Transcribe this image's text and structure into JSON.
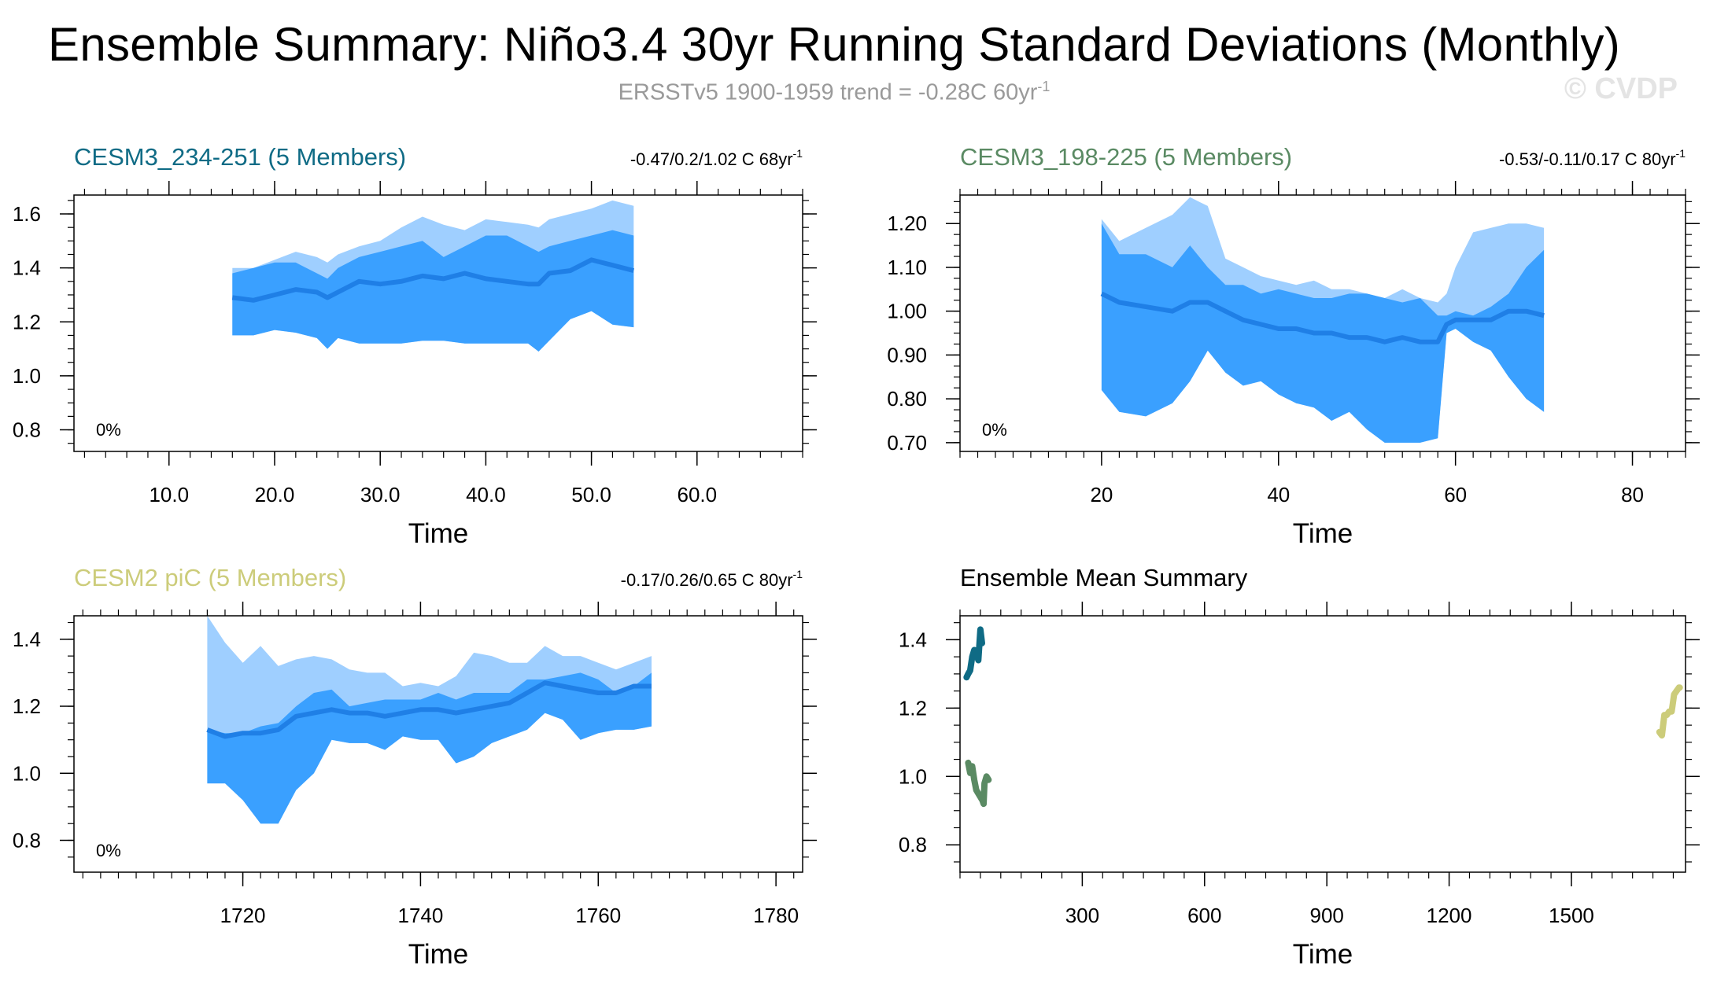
{
  "title": "Ensemble Summary: Niño3.4 30yr Running Standard Deviations (Monthly)",
  "subtitle": {
    "main": "ERSSTv5 1900-1959 trend = -0.28C 60yr",
    "sup": "-1"
  },
  "watermark": "© CVDP",
  "colors": {
    "outer_band": "#9fcfff",
    "inner_band": "#3aa0ff",
    "mean_line": "#1f7fe6",
    "cesm3_234_251": "#0f6b85",
    "cesm3_198_225": "#5a8a63",
    "cesm2_pic": "#cccc7a"
  },
  "chart_data": [
    {
      "type": "area",
      "panel": "top-left",
      "title": "CESM3_234-251 (5 Members)",
      "title_color_key": "cesm3_234_251",
      "trend_text": "-0.47/0.2/1.02 C 68yr",
      "trend_sup": "-1",
      "percent_label": "0%",
      "xlabel": "Time",
      "xlim": [
        1,
        70
      ],
      "ylim": [
        0.72,
        1.67
      ],
      "xticks": [
        10,
        20,
        30,
        40,
        50,
        60
      ],
      "xtick_labels": [
        "10.0",
        "20.0",
        "30.0",
        "40.0",
        "50.0",
        "60.0"
      ],
      "yticks": [
        0.8,
        1.0,
        1.2,
        1.4,
        1.6
      ],
      "ytick_labels": [
        "0.8",
        "1.0",
        "1.2",
        "1.4",
        "1.6"
      ],
      "x": [
        16,
        18,
        20,
        22,
        24,
        25,
        26,
        28,
        30,
        32,
        34,
        36,
        38,
        40,
        42,
        44,
        45,
        46,
        48,
        50,
        52,
        54
      ],
      "min": [
        1.15,
        1.15,
        1.17,
        1.16,
        1.14,
        1.1,
        1.14,
        1.12,
        1.12,
        1.12,
        1.13,
        1.13,
        1.12,
        1.12,
        1.12,
        1.12,
        1.09,
        1.13,
        1.21,
        1.24,
        1.19,
        1.18
      ],
      "p25": [
        1.38,
        1.4,
        1.42,
        1.42,
        1.38,
        1.36,
        1.4,
        1.44,
        1.46,
        1.48,
        1.5,
        1.44,
        1.48,
        1.52,
        1.52,
        1.48,
        1.46,
        1.48,
        1.5,
        1.52,
        1.54,
        1.52
      ],
      "mean": [
        1.29,
        1.28,
        1.3,
        1.32,
        1.31,
        1.29,
        1.31,
        1.35,
        1.34,
        1.35,
        1.37,
        1.36,
        1.38,
        1.36,
        1.35,
        1.34,
        1.34,
        1.38,
        1.39,
        1.43,
        1.41,
        1.39
      ],
      "max": [
        1.4,
        1.4,
        1.43,
        1.46,
        1.44,
        1.42,
        1.45,
        1.48,
        1.5,
        1.55,
        1.59,
        1.56,
        1.54,
        1.58,
        1.57,
        1.56,
        1.55,
        1.58,
        1.6,
        1.62,
        1.65,
        1.63
      ]
    },
    {
      "type": "area",
      "panel": "top-right",
      "title": "CESM3_198-225 (5 Members)",
      "title_color_key": "cesm3_198_225",
      "trend_text": "-0.53/-0.11/0.17 C 80yr",
      "trend_sup": "-1",
      "percent_label": "0%",
      "xlabel": "Time",
      "xlim": [
        4,
        86
      ],
      "ylim": [
        0.68,
        1.265
      ],
      "xticks": [
        20,
        40,
        60,
        80
      ],
      "xtick_labels": [
        "20",
        "40",
        "60",
        "80"
      ],
      "yticks": [
        0.7,
        0.8,
        0.9,
        1.0,
        1.1,
        1.2
      ],
      "ytick_labels": [
        "0.70",
        "0.80",
        "0.90",
        "1.00",
        "1.10",
        "1.20"
      ],
      "x": [
        20,
        22,
        25,
        28,
        30,
        32,
        34,
        36,
        38,
        40,
        42,
        44,
        46,
        48,
        50,
        52,
        54,
        56,
        58,
        59,
        60,
        62,
        64,
        66,
        68,
        70
      ],
      "min": [
        0.82,
        0.77,
        0.76,
        0.79,
        0.84,
        0.91,
        0.86,
        0.83,
        0.84,
        0.81,
        0.79,
        0.78,
        0.75,
        0.77,
        0.73,
        0.7,
        0.7,
        0.7,
        0.71,
        0.95,
        0.96,
        0.93,
        0.91,
        0.85,
        0.8,
        0.77
      ],
      "p25": [
        1.2,
        1.13,
        1.13,
        1.1,
        1.15,
        1.1,
        1.06,
        1.06,
        1.04,
        1.05,
        1.04,
        1.03,
        1.03,
        1.04,
        1.04,
        1.03,
        1.02,
        1.03,
        0.99,
        0.99,
        1.0,
        0.99,
        1.01,
        1.04,
        1.1,
        1.14
      ],
      "mean": [
        1.04,
        1.02,
        1.01,
        1.0,
        1.02,
        1.02,
        1.0,
        0.98,
        0.97,
        0.96,
        0.96,
        0.95,
        0.95,
        0.94,
        0.94,
        0.93,
        0.94,
        0.93,
        0.93,
        0.97,
        0.98,
        0.98,
        0.98,
        1.0,
        1.0,
        0.99
      ],
      "max": [
        1.21,
        1.16,
        1.19,
        1.22,
        1.26,
        1.24,
        1.12,
        1.1,
        1.08,
        1.07,
        1.06,
        1.07,
        1.05,
        1.05,
        1.04,
        1.03,
        1.05,
        1.03,
        1.02,
        1.04,
        1.1,
        1.18,
        1.19,
        1.2,
        1.2,
        1.19
      ]
    },
    {
      "type": "area",
      "panel": "bottom-left",
      "title": "CESM2 piC (5 Members)",
      "title_color_key": "cesm2_pic",
      "trend_text": "-0.17/0.26/0.65 C 80yr",
      "trend_sup": "-1",
      "percent_label": "0%",
      "xlabel": "Time",
      "xlim": [
        1701,
        1783
      ],
      "ylim": [
        0.705,
        1.47
      ],
      "xticks": [
        1720,
        1740,
        1760,
        1780
      ],
      "xtick_labels": [
        "1720",
        "1740",
        "1760",
        "1780"
      ],
      "yticks": [
        0.8,
        1.0,
        1.2,
        1.4
      ],
      "ytick_labels": [
        "0.8",
        "1.0",
        "1.2",
        "1.4"
      ],
      "x": [
        1716,
        1718,
        1720,
        1722,
        1724,
        1726,
        1728,
        1730,
        1732,
        1734,
        1736,
        1738,
        1740,
        1742,
        1744,
        1746,
        1748,
        1750,
        1752,
        1754,
        1756,
        1758,
        1760,
        1762,
        1764,
        1766
      ],
      "min": [
        0.97,
        0.97,
        0.92,
        0.85,
        0.85,
        0.95,
        1.0,
        1.1,
        1.09,
        1.09,
        1.07,
        1.11,
        1.1,
        1.1,
        1.03,
        1.05,
        1.09,
        1.11,
        1.13,
        1.18,
        1.16,
        1.1,
        1.12,
        1.13,
        1.13,
        1.14
      ],
      "p25": [
        1.13,
        1.12,
        1.12,
        1.14,
        1.15,
        1.2,
        1.24,
        1.25,
        1.2,
        1.21,
        1.22,
        1.22,
        1.22,
        1.24,
        1.22,
        1.24,
        1.24,
        1.24,
        1.28,
        1.28,
        1.29,
        1.3,
        1.28,
        1.24,
        1.26,
        1.3
      ],
      "mean": [
        1.13,
        1.11,
        1.12,
        1.12,
        1.13,
        1.17,
        1.18,
        1.19,
        1.18,
        1.18,
        1.17,
        1.18,
        1.19,
        1.19,
        1.18,
        1.19,
        1.2,
        1.21,
        1.24,
        1.27,
        1.26,
        1.25,
        1.24,
        1.24,
        1.26,
        1.26
      ],
      "max": [
        1.47,
        1.39,
        1.33,
        1.38,
        1.32,
        1.34,
        1.35,
        1.34,
        1.31,
        1.3,
        1.3,
        1.26,
        1.27,
        1.26,
        1.29,
        1.36,
        1.35,
        1.33,
        1.33,
        1.38,
        1.35,
        1.35,
        1.33,
        1.31,
        1.33,
        1.35
      ]
    },
    {
      "type": "line",
      "panel": "bottom-right",
      "title": "Ensemble Mean Summary",
      "xlabel": "Time",
      "xlim": [
        0,
        1780
      ],
      "ylim": [
        0.72,
        1.47
      ],
      "xticks": [
        300,
        600,
        900,
        1200,
        1500
      ],
      "xtick_labels": [
        "300",
        "600",
        "900",
        "1200",
        "1500"
      ],
      "yticks": [
        0.8,
        1.0,
        1.2,
        1.4
      ],
      "ytick_labels": [
        "0.8",
        "1.0",
        "1.2",
        "1.4"
      ],
      "series": [
        {
          "name": "CESM3_234-251",
          "color_key": "cesm3_234_251",
          "x": [
            16,
            20,
            25,
            30,
            35,
            40,
            45,
            50,
            54
          ],
          "values": [
            1.29,
            1.3,
            1.31,
            1.35,
            1.37,
            1.36,
            1.34,
            1.43,
            1.39
          ]
        },
        {
          "name": "CESM3_198-225",
          "color_key": "cesm3_198_225",
          "x": [
            20,
            25,
            30,
            35,
            40,
            45,
            50,
            55,
            58,
            60,
            65,
            70
          ],
          "values": [
            1.04,
            1.01,
            1.03,
            0.99,
            0.96,
            0.95,
            0.94,
            0.93,
            0.92,
            0.98,
            1.0,
            0.99
          ]
        },
        {
          "name": "CESM2 piC",
          "color_key": "cesm2_pic",
          "x": [
            1716,
            1722,
            1728,
            1734,
            1740,
            1746,
            1752,
            1758,
            1764,
            1766
          ],
          "values": [
            1.13,
            1.12,
            1.18,
            1.18,
            1.19,
            1.19,
            1.24,
            1.25,
            1.26,
            1.26
          ]
        }
      ]
    }
  ]
}
